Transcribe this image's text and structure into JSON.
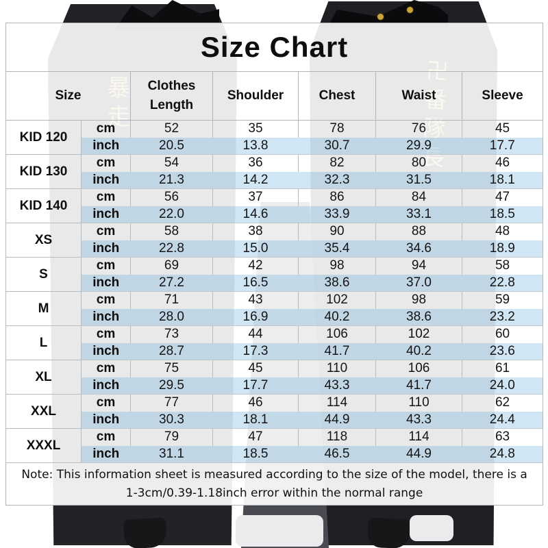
{
  "title": "Size Chart",
  "note": "Note: This information sheet is measured according to the size of the model, there is a 1-3cm/0.39-1.18inch error within the normal range",
  "chart_data": {
    "type": "table",
    "title": "Size Chart",
    "columns": [
      "Size",
      "Clothes Length",
      "Shoulder",
      "Chest",
      "Waist",
      "Sleeve"
    ],
    "unit_labels": [
      "cm",
      "inch"
    ],
    "rows": [
      {
        "size": "KID 120",
        "cm": [
          "52",
          "35",
          "78",
          "76",
          "45"
        ],
        "inch": [
          "20.5",
          "13.8",
          "30.7",
          "29.9",
          "17.7"
        ]
      },
      {
        "size": "KID 130",
        "cm": [
          "54",
          "36",
          "82",
          "80",
          "46"
        ],
        "inch": [
          "21.3",
          "14.2",
          "32.3",
          "31.5",
          "18.1"
        ]
      },
      {
        "size": "KID 140",
        "cm": [
          "56",
          "37",
          "86",
          "84",
          "47"
        ],
        "inch": [
          "22.0",
          "14.6",
          "33.9",
          "33.1",
          "18.5"
        ]
      },
      {
        "size": "XS",
        "cm": [
          "58",
          "38",
          "90",
          "88",
          "48"
        ],
        "inch": [
          "22.8",
          "15.0",
          "35.4",
          "34.6",
          "18.9"
        ]
      },
      {
        "size": "S",
        "cm": [
          "69",
          "42",
          "98",
          "94",
          "58"
        ],
        "inch": [
          "27.2",
          "16.5",
          "38.6",
          "37.0",
          "22.8"
        ]
      },
      {
        "size": "M",
        "cm": [
          "71",
          "43",
          "102",
          "98",
          "59"
        ],
        "inch": [
          "28.0",
          "16.9",
          "40.2",
          "38.6",
          "23.2"
        ]
      },
      {
        "size": "L",
        "cm": [
          "73",
          "44",
          "106",
          "102",
          "60"
        ],
        "inch": [
          "28.7",
          "17.3",
          "41.7",
          "40.2",
          "23.6"
        ]
      },
      {
        "size": "XL",
        "cm": [
          "75",
          "45",
          "110",
          "106",
          "61"
        ],
        "inch": [
          "29.5",
          "17.7",
          "43.3",
          "41.7",
          "24.0"
        ]
      },
      {
        "size": "XXL",
        "cm": [
          "77",
          "46",
          "114",
          "110",
          "62"
        ],
        "inch": [
          "30.3",
          "18.1",
          "44.9",
          "43.3",
          "24.4"
        ]
      },
      {
        "size": "XXXL",
        "cm": [
          "79",
          "47",
          "118",
          "114",
          "63"
        ],
        "inch": [
          "31.1",
          "18.5",
          "46.5",
          "44.9",
          "24.8"
        ]
      }
    ]
  },
  "background": {
    "left_garment_text": "暴走",
    "right_garment_text": "卍番隊長"
  },
  "colors": {
    "inch_row_bg": "#d2e5f2",
    "table_border": "#b6bbbf",
    "kanji_gold": "#d8bc5e",
    "garment_black": "#1f1f24",
    "text": "#0e0e0e"
  }
}
